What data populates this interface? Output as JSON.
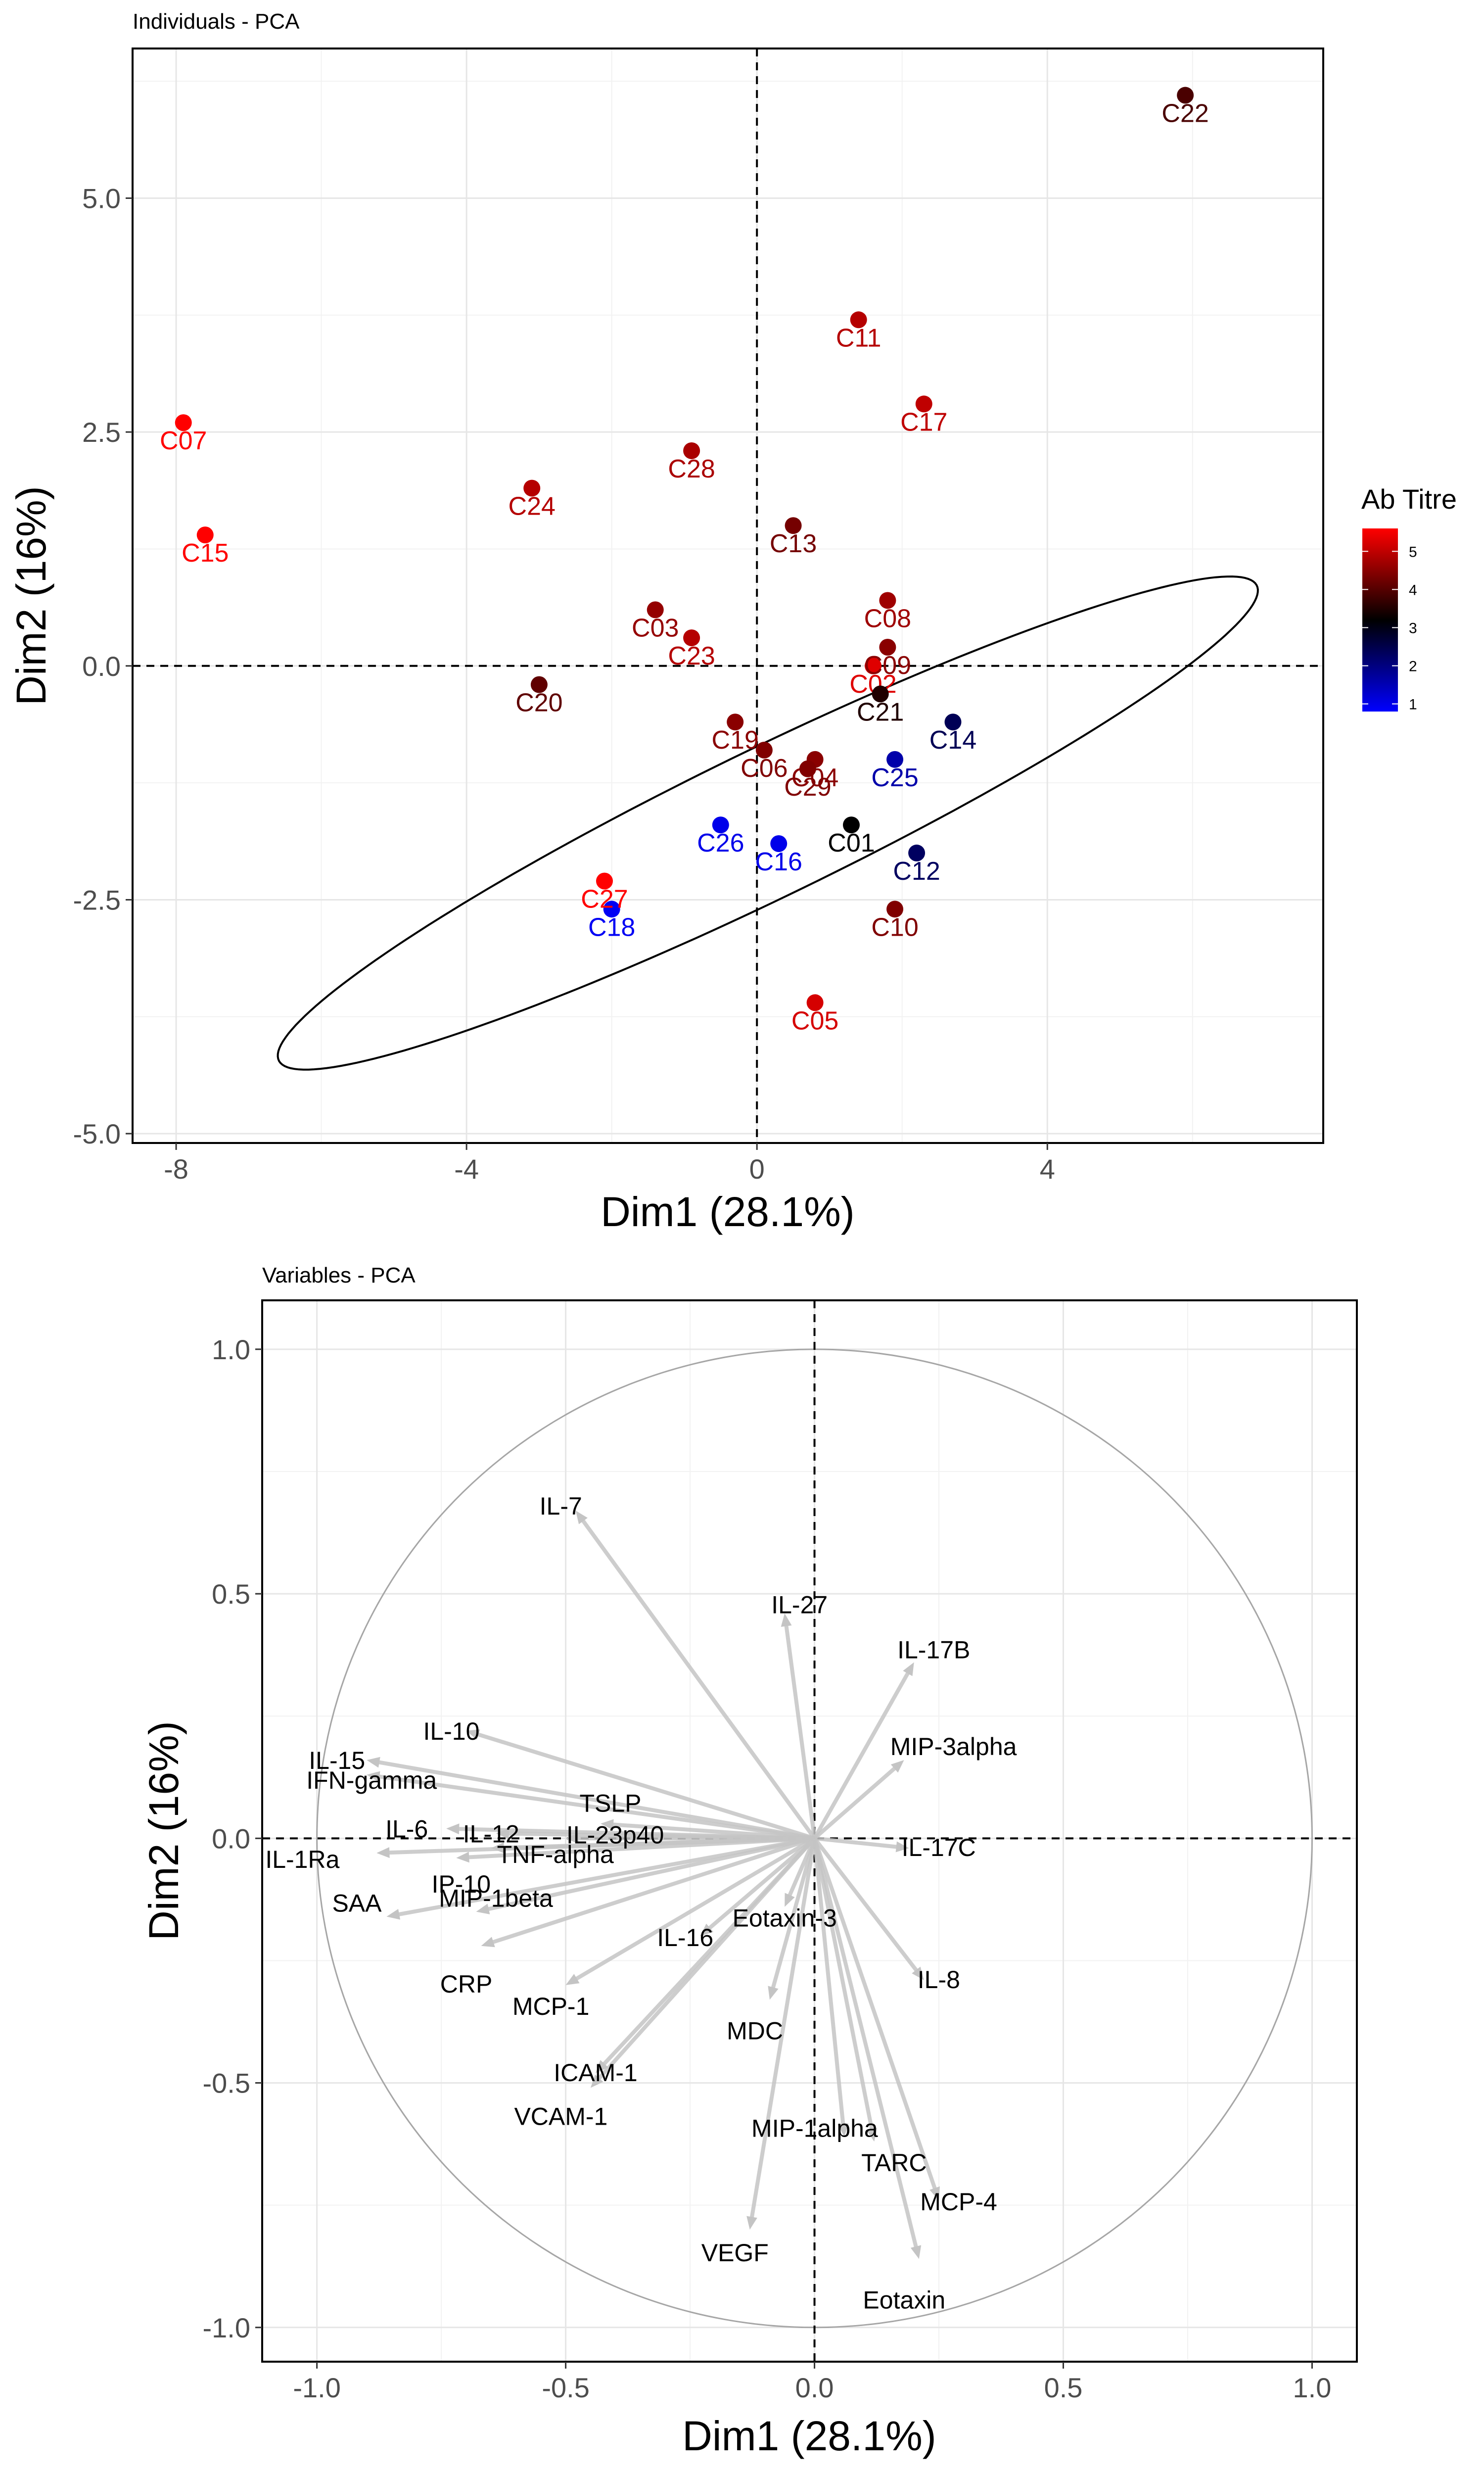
{
  "chart_data": [
    {
      "type": "scatter",
      "title": "Individuals - PCA",
      "xlabel": "Dim1 (28.1%)",
      "ylabel": "Dim2 (16%)",
      "xlim": [
        -8.6,
        7.8
      ],
      "ylim": [
        -5.1,
        6.6
      ],
      "xticks": [
        -8,
        -4,
        0,
        4
      ],
      "yticks": [
        -5.0,
        -2.5,
        0.0,
        2.5,
        5.0
      ],
      "xtick_labels": [
        "-8",
        "-4",
        "0",
        "4"
      ],
      "ytick_labels": [
        "-5.0",
        "-2.5",
        "0.0",
        "2.5",
        "5.0"
      ],
      "grid": true,
      "legend": {
        "title": "Ab Titre",
        "placement": "right",
        "min": 0.8,
        "max": 5.6,
        "ticks": [
          1,
          2,
          3,
          4,
          5
        ],
        "tick_labels": [
          "1",
          "2",
          "3",
          "4",
          "5"
        ],
        "colors": [
          "#0000ff",
          "#000000",
          "#ff0000"
        ]
      },
      "ellipse": {
        "center": [
          0.15,
          -1.68
        ],
        "semi_major": 7.2,
        "semi_minor": 0.82,
        "angle_deg": 20.5
      },
      "points": [
        {
          "name": "C01",
          "x": 1.3,
          "y": -1.7,
          "titre": 3.2
        },
        {
          "name": "C02",
          "x": 1.6,
          "y": 0.0,
          "titre": 5.3
        },
        {
          "name": "C03",
          "x": -1.4,
          "y": 0.6,
          "titre": 4.6
        },
        {
          "name": "C04",
          "x": 0.8,
          "y": -1.0,
          "titre": 4.5
        },
        {
          "name": "C05",
          "x": 0.8,
          "y": -3.6,
          "titre": 5.2
        },
        {
          "name": "C06",
          "x": 0.1,
          "y": -0.9,
          "titre": 4.4
        },
        {
          "name": "C07",
          "x": -7.9,
          "y": 2.6,
          "titre": 5.6
        },
        {
          "name": "C08",
          "x": 1.8,
          "y": 0.7,
          "titre": 4.7
        },
        {
          "name": "C09",
          "x": 1.8,
          "y": 0.2,
          "titre": 4.5
        },
        {
          "name": "C10",
          "x": 1.9,
          "y": -2.6,
          "titre": 4.4
        },
        {
          "name": "C11",
          "x": 1.4,
          "y": 3.7,
          "titre": 4.9
        },
        {
          "name": "C12",
          "x": 2.2,
          "y": -2.0,
          "titre": 2.3
        },
        {
          "name": "C13",
          "x": 0.5,
          "y": 1.5,
          "titre": 4.3
        },
        {
          "name": "C14",
          "x": 2.7,
          "y": -0.6,
          "titre": 2.4
        },
        {
          "name": "C15",
          "x": -7.6,
          "y": 1.4,
          "titre": 5.6
        },
        {
          "name": "C16",
          "x": 0.3,
          "y": -1.9,
          "titre": 1.0
        },
        {
          "name": "C17",
          "x": 2.3,
          "y": 2.8,
          "titre": 5.0
        },
        {
          "name": "C18",
          "x": -2.0,
          "y": -2.6,
          "titre": 0.9
        },
        {
          "name": "C19",
          "x": -0.3,
          "y": -0.6,
          "titre": 4.5
        },
        {
          "name": "C20",
          "x": -3.0,
          "y": -0.2,
          "titre": 4.1
        },
        {
          "name": "C21",
          "x": 1.7,
          "y": -0.3,
          "titre": 3.5
        },
        {
          "name": "C22",
          "x": 5.9,
          "y": 6.1,
          "titre": 3.9
        },
        {
          "name": "C23",
          "x": -0.9,
          "y": 0.3,
          "titre": 4.9
        },
        {
          "name": "C24",
          "x": -3.1,
          "y": 1.9,
          "titre": 4.9
        },
        {
          "name": "C25",
          "x": 1.9,
          "y": -1.0,
          "titre": 1.6
        },
        {
          "name": "C26",
          "x": -0.5,
          "y": -1.7,
          "titre": 1.0
        },
        {
          "name": "C27",
          "x": -2.1,
          "y": -2.3,
          "titre": 5.6
        },
        {
          "name": "C28",
          "x": -0.9,
          "y": 2.3,
          "titre": 4.8
        },
        {
          "name": "C29",
          "x": 0.7,
          "y": -1.1,
          "titre": 4.4
        }
      ]
    },
    {
      "type": "scatter",
      "title": "Variables - PCA",
      "xlabel": "Dim1 (28.1%)",
      "ylabel": "Dim2 (16%)",
      "xlim": [
        -1.11,
        1.09
      ],
      "ylim": [
        -1.07,
        1.1
      ],
      "xticks": [
        -1.0,
        -0.5,
        0.0,
        0.5,
        1.0
      ],
      "yticks": [
        -1.0,
        -0.5,
        0.0,
        0.5,
        1.0
      ],
      "xtick_labels": [
        "-1.0",
        "-0.5",
        "0.0",
        "0.5",
        "1.0"
      ],
      "ytick_labels": [
        "-1.0",
        "-0.5",
        "0.0",
        "0.5",
        "1.0"
      ],
      "grid": true,
      "correlation_circle": true,
      "arrows": [
        {
          "name": "IL-7",
          "x": -0.48,
          "y": 0.67
        },
        {
          "name": "IL-27",
          "x": -0.06,
          "y": 0.46
        },
        {
          "name": "IL-17B",
          "x": 0.2,
          "y": 0.36
        },
        {
          "name": "MIP-3alpha",
          "x": 0.18,
          "y": 0.16
        },
        {
          "name": "IL-17C",
          "x": 0.19,
          "y": -0.02
        },
        {
          "name": "IL-10",
          "x": -0.7,
          "y": 0.22
        },
        {
          "name": "IL-15",
          "x": -0.9,
          "y": 0.16
        },
        {
          "name": "IFN-gamma",
          "x": -0.9,
          "y": 0.13
        },
        {
          "name": "TSLP",
          "x": -0.43,
          "y": 0.03
        },
        {
          "name": "IL-6",
          "x": -0.74,
          "y": 0.02
        },
        {
          "name": "IL-12",
          "x": -0.64,
          "y": 0.01
        },
        {
          "name": "IL-23p40",
          "x": -0.5,
          "y": 0.0
        },
        {
          "name": "IL-1Ra",
          "x": -0.88,
          "y": -0.03
        },
        {
          "name": "TNF-alpha",
          "x": -0.65,
          "y": -0.02
        },
        {
          "name": "IP-10",
          "x": -0.72,
          "y": -0.04
        },
        {
          "name": "SAA",
          "x": -0.86,
          "y": -0.16
        },
        {
          "name": "MIP-1beta",
          "x": -0.68,
          "y": -0.15
        },
        {
          "name": "CRP",
          "x": -0.67,
          "y": -0.22
        },
        {
          "name": "MCP-1",
          "x": -0.5,
          "y": -0.3
        },
        {
          "name": "Eotaxin-3",
          "x": -0.06,
          "y": -0.14
        },
        {
          "name": "IL-16",
          "x": -0.23,
          "y": -0.2
        },
        {
          "name": "MDC",
          "x": -0.09,
          "y": -0.33
        },
        {
          "name": "IL-8",
          "x": 0.22,
          "y": -0.29
        },
        {
          "name": "ICAM-1",
          "x": -0.44,
          "y": -0.48
        },
        {
          "name": "VCAM-1",
          "x": -0.45,
          "y": -0.51
        },
        {
          "name": "MIP-1alpha",
          "x": 0.06,
          "y": -0.61
        },
        {
          "name": "TARC",
          "x": 0.12,
          "y": -0.62
        },
        {
          "name": "MCP-4",
          "x": 0.25,
          "y": -0.74
        },
        {
          "name": "VEGF",
          "x": -0.13,
          "y": -0.8
        },
        {
          "name": "Eotaxin",
          "x": 0.21,
          "y": -0.86
        }
      ]
    }
  ]
}
